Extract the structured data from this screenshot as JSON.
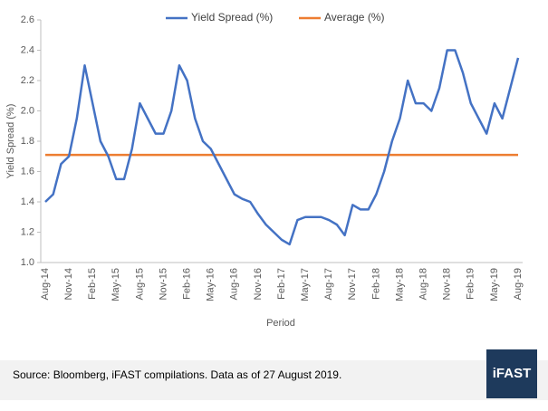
{
  "chart_data": {
    "type": "line",
    "y_label": "Yield Spread (%)",
    "x_label": "Period",
    "categories": [
      "Aug-14",
      null,
      null,
      "Nov-14",
      null,
      null,
      "Feb-15",
      null,
      null,
      "May-15",
      null,
      null,
      "Aug-15",
      null,
      null,
      "Nov-15",
      null,
      null,
      "Feb-16",
      null,
      null,
      "May-16",
      null,
      null,
      "Aug-16",
      null,
      null,
      "Nov-16",
      null,
      null,
      "Feb-17",
      null,
      null,
      "May-17",
      null,
      null,
      "Aug-17",
      null,
      null,
      "Nov-17",
      null,
      null,
      "Feb-18",
      null,
      null,
      "May-18",
      null,
      null,
      "Aug-18",
      null,
      null,
      "Nov-18",
      null,
      null,
      "Feb-19",
      null,
      null,
      "May-19",
      null,
      null,
      "Aug-19"
    ],
    "series": [
      {
        "name": "Yield Spread (%)",
        "color": "#4472c4",
        "values": [
          1.4,
          1.45,
          1.65,
          1.7,
          1.95,
          2.3,
          2.05,
          1.8,
          1.7,
          1.55,
          1.55,
          1.75,
          2.05,
          1.95,
          1.85,
          1.85,
          2.0,
          2.3,
          2.2,
          1.95,
          1.8,
          1.75,
          1.65,
          1.55,
          1.45,
          1.42,
          1.4,
          1.32,
          1.25,
          1.2,
          1.15,
          1.12,
          1.28,
          1.3,
          1.3,
          1.3,
          1.28,
          1.25,
          1.18,
          1.38,
          1.35,
          1.35,
          1.45,
          1.6,
          1.8,
          1.95,
          2.2,
          2.05,
          2.05,
          2.0,
          2.15,
          2.4,
          2.4,
          2.25,
          2.05,
          1.95,
          1.85,
          2.05,
          1.95,
          2.15,
          2.35
        ]
      },
      {
        "name": "Average (%)",
        "color": "#ed7d31",
        "values": [
          1.71,
          1.71,
          1.71,
          1.71,
          1.71,
          1.71,
          1.71,
          1.71,
          1.71,
          1.71,
          1.71,
          1.71,
          1.71,
          1.71,
          1.71,
          1.71,
          1.71,
          1.71,
          1.71,
          1.71,
          1.71,
          1.71,
          1.71,
          1.71,
          1.71,
          1.71,
          1.71,
          1.71,
          1.71,
          1.71,
          1.71,
          1.71,
          1.71,
          1.71,
          1.71,
          1.71,
          1.71,
          1.71,
          1.71,
          1.71,
          1.71,
          1.71,
          1.71,
          1.71,
          1.71,
          1.71,
          1.71,
          1.71,
          1.71,
          1.71,
          1.71,
          1.71,
          1.71,
          1.71,
          1.71,
          1.71,
          1.71,
          1.71,
          1.71,
          1.71,
          1.71
        ]
      }
    ],
    "ylim": [
      1.0,
      2.6
    ],
    "yticks": [
      {
        "value": 1.0,
        "label": "1.0"
      },
      {
        "value": 1.2,
        "label": "1.2"
      },
      {
        "value": 1.4,
        "label": "1.4"
      },
      {
        "value": 1.6,
        "label": "1.6"
      },
      {
        "value": 1.8,
        "label": "1.8"
      },
      {
        "value": 2.0,
        "label": "2.0"
      },
      {
        "value": 2.2,
        "label": "2.2"
      },
      {
        "value": 2.4,
        "label": "2.4"
      },
      {
        "value": 2.6,
        "label": "2.6"
      }
    ],
    "grid": false,
    "legend": "top"
  },
  "footer": {
    "source": "Source: Bloomberg, iFAST compilations. Data as of 27 August 2019.",
    "logo": "iFAST"
  }
}
